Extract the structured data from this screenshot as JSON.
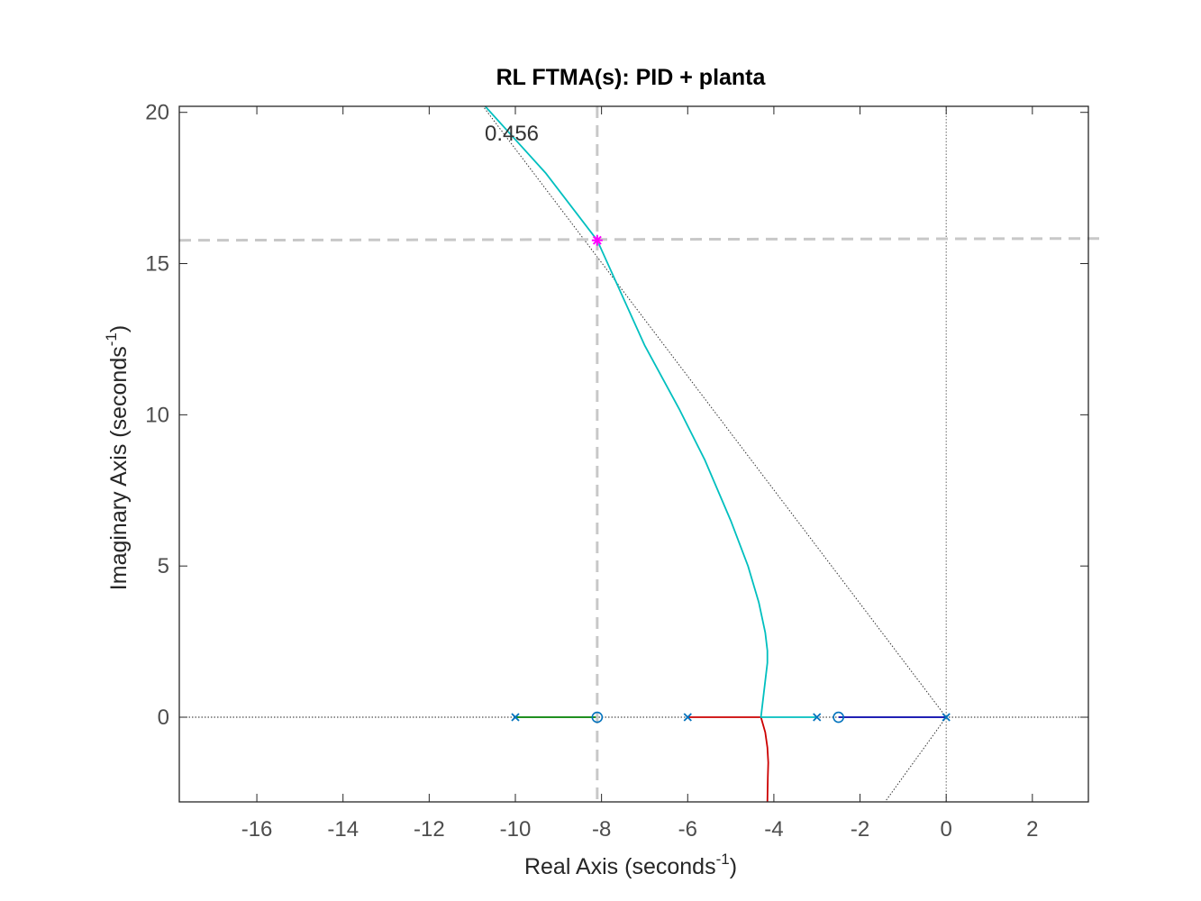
{
  "chart_data": {
    "type": "line",
    "title": "RL FTMA(s): PID + planta",
    "xlabel": {
      "text": "Real Axis (seconds",
      "sup": "-1",
      "close": ")"
    },
    "ylabel": {
      "text": "Imaginary Axis (seconds",
      "sup": "-1",
      "close": ")"
    },
    "xlim": [
      -17.8,
      3.3
    ],
    "ylim": [
      -2.8,
      20.2
    ],
    "xticks": [
      -16,
      -14,
      -12,
      -10,
      -8,
      -6,
      -4,
      -2,
      0,
      2
    ],
    "yticks": [
      0,
      5,
      10,
      15,
      20
    ],
    "grid": false,
    "damping_label": "0.456",
    "poles": [
      [
        -10,
        0
      ],
      [
        -6,
        0
      ],
      [
        -3,
        0
      ],
      [
        0,
        0
      ]
    ],
    "zeros": [
      [
        -8.1,
        0
      ],
      [
        -2.5,
        0
      ]
    ],
    "selected_point": [
      -8.1,
      15.77
    ],
    "damping_line": {
      "upper": [
        [
          0,
          0
        ],
        [
          -10.75,
          20.2
        ]
      ],
      "lower": [
        [
          0,
          0
        ],
        [
          -1.42,
          -2.8
        ]
      ]
    },
    "crosshair": {
      "x": -8.1,
      "y": 15.77
    },
    "series": [
      {
        "color": "#008000",
        "points": [
          [
            -10,
            0
          ],
          [
            -8.1,
            0
          ]
        ]
      },
      {
        "color": "#cc0000",
        "points": [
          [
            -6,
            0
          ],
          [
            -4.3,
            0
          ],
          [
            -4.2,
            -0.5
          ],
          [
            -4.15,
            -1.0
          ],
          [
            -4.13,
            -1.5
          ],
          [
            -4.14,
            -2.0
          ],
          [
            -4.15,
            -2.8
          ]
        ]
      },
      {
        "color": "#00bfbf",
        "points": [
          [
            -3,
            0
          ],
          [
            -4.3,
            0
          ],
          [
            -4.25,
            0.6
          ],
          [
            -4.2,
            1.2
          ],
          [
            -4.15,
            1.8
          ],
          [
            -4.15,
            2.2
          ],
          [
            -4.2,
            2.8
          ],
          [
            -4.35,
            3.8
          ],
          [
            -4.6,
            5.0
          ],
          [
            -5.0,
            6.5
          ],
          [
            -5.6,
            8.5
          ],
          [
            -6.2,
            10.2
          ],
          [
            -7.0,
            12.3
          ],
          [
            -8.1,
            15.77
          ],
          [
            -8.6,
            16.7
          ],
          [
            -9.3,
            18.0
          ],
          [
            -10.0,
            19.1
          ],
          [
            -10.7,
            20.2
          ]
        ]
      },
      {
        "color": "#0000aa",
        "points": [
          [
            -2.5,
            0
          ],
          [
            0,
            0
          ]
        ]
      }
    ]
  }
}
